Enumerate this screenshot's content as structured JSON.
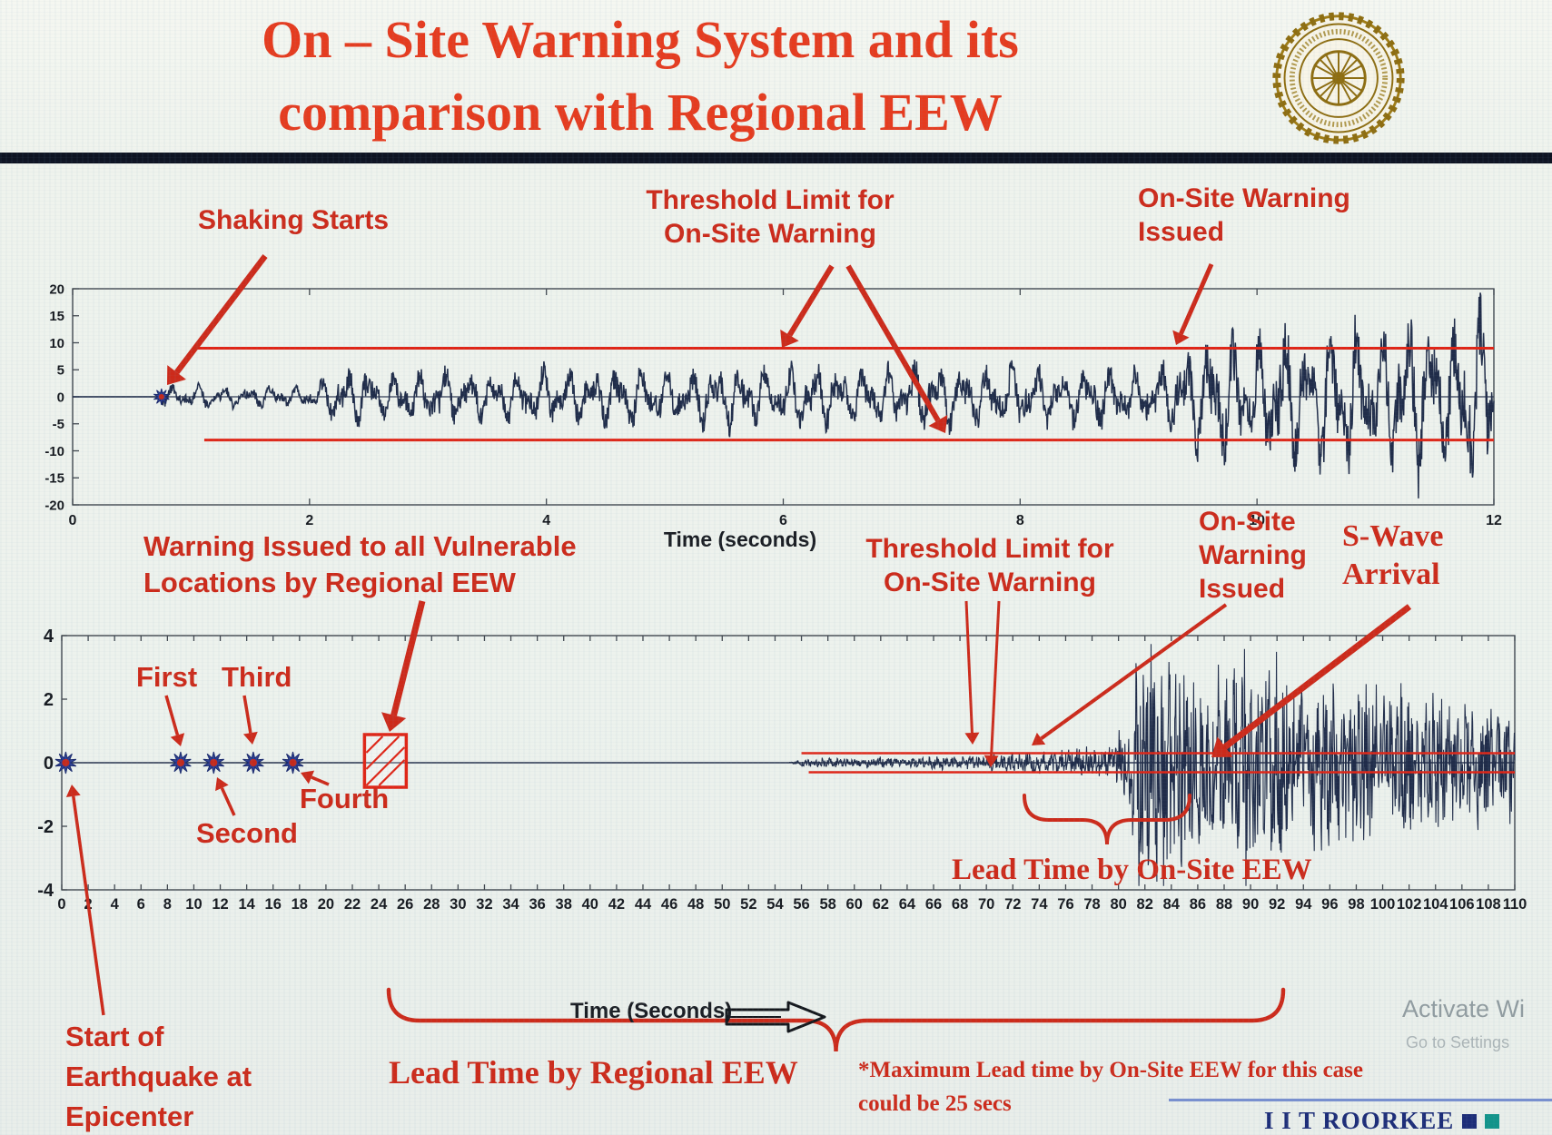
{
  "slide": {
    "title_line1": "On – Site Warning System and its",
    "title_line2": "comparison with Regional EEW",
    "brand": "I I T ROORKEE",
    "watermark_line1": "Activate Wi",
    "watermark_line2": "Go to Settings"
  },
  "colors": {
    "title_red": "#e63b1e",
    "annotation_red": "#cd2a1a",
    "threshold_red": "#e02516",
    "waveform_navy": "#202c49",
    "brand_navy": "#1d2d78",
    "brand_teal": "#12948a",
    "logo_gold": "#8e6d10",
    "divider_dark": "#0d1322"
  },
  "chart_data": [
    {
      "id": "onsite_station_record",
      "type": "line",
      "xlabel": "Time (seconds)",
      "xlim": [
        0,
        12
      ],
      "ylim": [
        -20,
        20
      ],
      "xticks": [
        0,
        2,
        4,
        6,
        8,
        10,
        12
      ],
      "yticks": [
        20,
        15,
        10,
        5,
        0,
        -5,
        -10,
        -15,
        -20
      ],
      "grid": false,
      "threshold_upper": 9,
      "threshold_lower": -8,
      "threshold_start_t": 1.05,
      "events": {
        "shaking_starts_t": 0.75,
        "onsite_warning_issued_t": 9.4
      },
      "amplitude_envelope": [
        [
          0,
          0
        ],
        [
          0.7,
          0
        ],
        [
          0.78,
          2.0
        ],
        [
          1.1,
          2.2
        ],
        [
          2.0,
          1.8
        ],
        [
          2.3,
          6.0
        ],
        [
          2.7,
          4.5
        ],
        [
          3.1,
          5.5
        ],
        [
          3.5,
          4.5
        ],
        [
          3.9,
          5.5
        ],
        [
          4.3,
          4.8
        ],
        [
          4.7,
          6.0
        ],
        [
          5.1,
          5.0
        ],
        [
          5.5,
          6.5
        ],
        [
          5.9,
          5.2
        ],
        [
          6.3,
          6.2
        ],
        [
          6.7,
          5.2
        ],
        [
          7.1,
          6.5
        ],
        [
          7.5,
          5.5
        ],
        [
          7.9,
          6.2
        ],
        [
          8.3,
          5.2
        ],
        [
          8.7,
          6.0
        ],
        [
          9.0,
          5.5
        ],
        [
          9.3,
          7.0
        ],
        [
          9.45,
          10.5
        ],
        [
          9.7,
          12.0
        ],
        [
          9.95,
          9.5
        ],
        [
          10.15,
          15.0
        ],
        [
          10.45,
          11.5
        ],
        [
          10.7,
          16.5
        ],
        [
          11.0,
          12.0
        ],
        [
          11.3,
          16.0
        ],
        [
          11.6,
          13.0
        ],
        [
          11.85,
          17.0
        ],
        [
          12,
          13.0
        ]
      ],
      "annotations": {
        "shaking_starts": "Shaking Starts",
        "threshold_line1": "Threshold Limit for",
        "threshold_line2": "On-Site Warning",
        "issued_line1": "On-Site Warning",
        "issued_line2": "Issued"
      }
    },
    {
      "id": "regional_vs_onsite_comparison",
      "type": "line",
      "xlabel": "Time (Seconds)",
      "xlim": [
        0,
        110
      ],
      "ylim": [
        -4,
        4
      ],
      "xtick_step": 2,
      "yticks": [
        4,
        2,
        0,
        -2,
        -4
      ],
      "grid": false,
      "threshold_upper": 0.3,
      "threshold_lower": -0.3,
      "threshold_start_t": 56,
      "events": {
        "epicenter_t": 0.3,
        "p_wave_detections_t": [
          9,
          11.5,
          14.5,
          17.5
        ],
        "regional_warning_t": 24.5,
        "onsite_warning_issued_t": 73,
        "s_wave_arrival_t": 86.5,
        "lead_time_regional_span_t": [
          24.5,
          92.5
        ],
        "lead_time_onsite_span_t": [
          73,
          85.5
        ],
        "max_onsite_lead_secs": 25
      },
      "amplitude_envelope": [
        [
          0,
          0
        ],
        [
          55,
          0
        ],
        [
          56,
          0.1
        ],
        [
          58,
          0.14
        ],
        [
          60,
          0.11
        ],
        [
          62,
          0.16
        ],
        [
          64,
          0.13
        ],
        [
          66,
          0.18
        ],
        [
          68,
          0.15
        ],
        [
          70,
          0.2
        ],
        [
          72,
          0.24
        ],
        [
          74,
          0.3
        ],
        [
          76,
          0.34
        ],
        [
          78,
          0.4
        ],
        [
          79.5,
          0.5
        ],
        [
          80.5,
          1.0
        ],
        [
          81.2,
          2.6
        ],
        [
          82,
          3.6
        ],
        [
          82.8,
          2.7
        ],
        [
          83.6,
          3.4
        ],
        [
          84.4,
          2.6
        ],
        [
          85.2,
          3.2
        ],
        [
          86,
          2.4
        ],
        [
          87,
          3.0
        ],
        [
          88,
          2.2
        ],
        [
          89,
          2.8
        ],
        [
          90,
          3.3
        ],
        [
          91,
          2.3
        ],
        [
          92.5,
          2.9
        ],
        [
          94,
          2.0
        ],
        [
          95.5,
          2.5
        ],
        [
          97,
          1.8
        ],
        [
          98.5,
          2.3
        ],
        [
          100,
          1.7
        ],
        [
          101.5,
          2.2
        ],
        [
          103,
          1.6
        ],
        [
          104.5,
          2.0
        ],
        [
          106,
          1.5
        ],
        [
          107.5,
          1.9
        ],
        [
          109,
          1.4
        ],
        [
          110,
          1.7
        ]
      ],
      "annotations": {
        "regional_line1": "Warning Issued to all Vulnerable",
        "regional_line2": "Locations by Regional EEW",
        "first": "First",
        "second": "Second",
        "third": "Third",
        "fourth": "Fourth",
        "threshold_line1": "Threshold Limit for",
        "threshold_line2": "On-Site Warning",
        "issued_line1": "On-Site",
        "issued_line2": "Warning",
        "issued_line3": "Issued",
        "swave_line1": "S-Wave",
        "swave_line2": "Arrival",
        "epicenter_line1": "Start of",
        "epicenter_line2": "Earthquake at",
        "epicenter_line3": "Epicenter",
        "lead_regional": "Lead Time by Regional EEW",
        "lead_onsite": "Lead Time by On-Site EEW",
        "footnote_line1": "*Maximum Lead time by On-Site EEW for this case",
        "footnote_line2": "could be 25 secs"
      }
    }
  ]
}
